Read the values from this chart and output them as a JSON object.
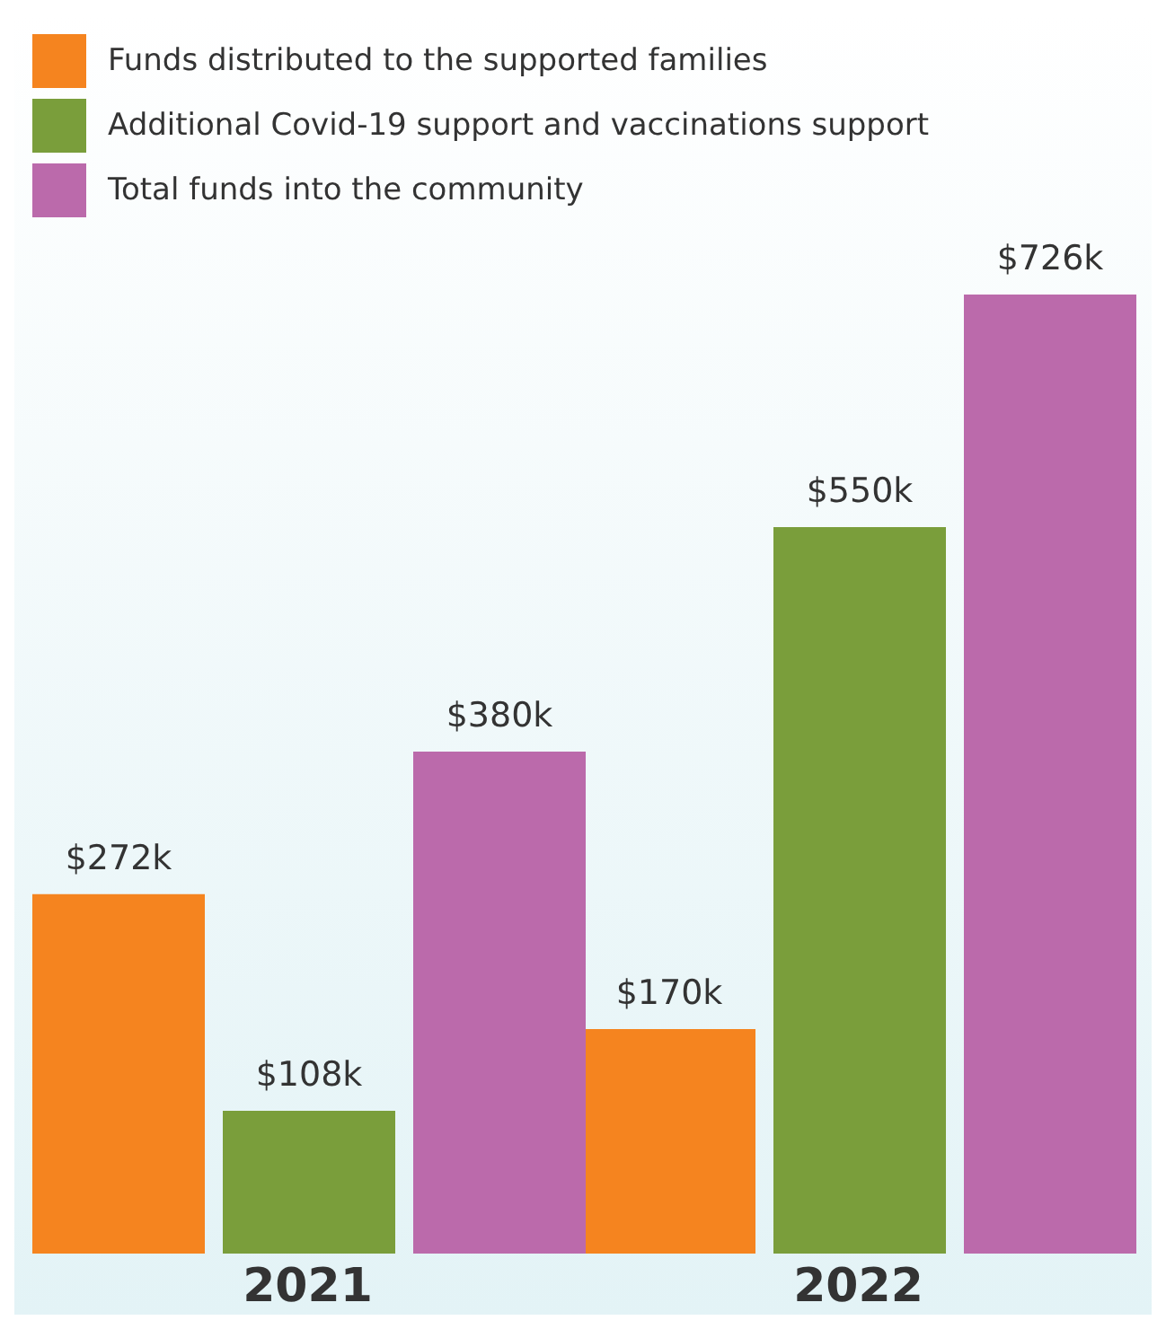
{
  "chart_data": {
    "type": "bar",
    "categories": [
      "2021",
      "2022"
    ],
    "series": [
      {
        "name": "Funds distributed to the supported families",
        "color": "#f5841f",
        "values": [
          272,
          170
        ],
        "value_labels": [
          "$272k",
          "$170k"
        ]
      },
      {
        "name": "Additional Covid-19 support and vaccinations support",
        "color": "#7a9e3b",
        "values": [
          108,
          550
        ],
        "value_labels": [
          "$108k",
          "$550k"
        ]
      },
      {
        "name": "Total funds into the community",
        "color": "#bb6aab",
        "values": [
          380,
          726
        ],
        "value_labels": [
          "$380k",
          "$726k"
        ]
      }
    ],
    "legend": "top left",
    "grid": false
  }
}
